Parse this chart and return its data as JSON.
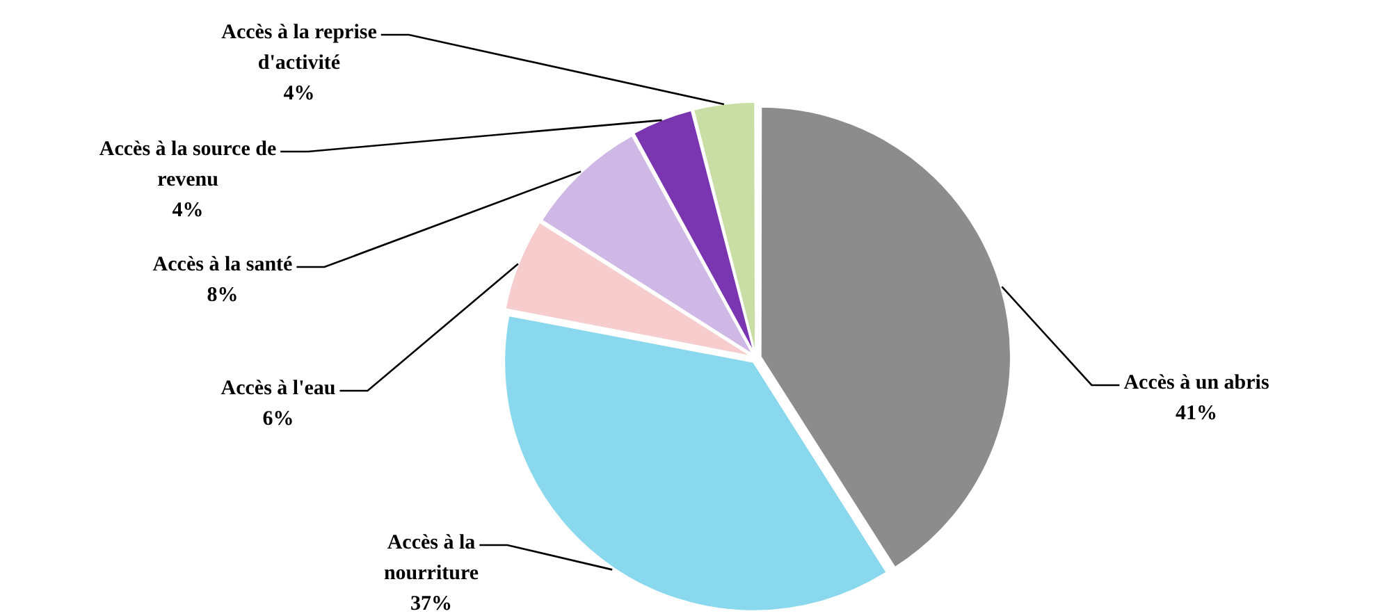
{
  "chart_data": {
    "type": "pie",
    "categories": [
      "Accès à un abris",
      "Accès à la nourriture",
      "Accès à l'eau",
      "Accès à la santé",
      "Accès à la source de revenu",
      "Accès à la reprise d'activité"
    ],
    "values": [
      41,
      37,
      6,
      8,
      4,
      4
    ],
    "value_labels": [
      "41%",
      "37%",
      "6%",
      "8%",
      "4%",
      "4%"
    ],
    "colors": [
      "#8c8c8c",
      "#8ad8ee",
      "#f6cccc",
      "#cfb8e6",
      "#7a35b0",
      "#c8dea4"
    ],
    "legend": false
  }
}
